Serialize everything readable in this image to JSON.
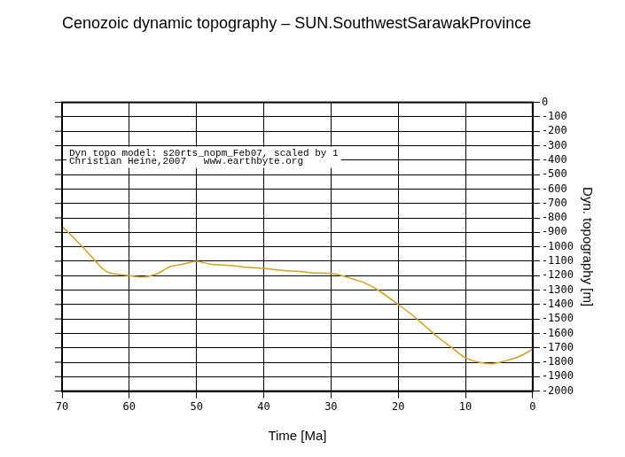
{
  "chart_data": {
    "type": "line",
    "title": "Cenozoic dynamic topography – SUN.SouthwestSarawakProvince",
    "x_label": "Time [Ma]",
    "y_label": "Dyn. topography [m]",
    "annotations": [
      "Dyn topo model: s20rts_nopm_Feb07, scaled by 1",
      "Christian Heine,2007   www.earthbyte.org"
    ],
    "x": [
      70,
      68,
      66,
      64,
      63,
      60,
      58,
      56,
      54,
      52,
      50,
      48,
      45,
      43,
      40,
      37,
      35,
      33,
      30,
      28,
      26,
      25,
      23,
      20,
      18,
      16,
      14,
      12,
      10,
      8,
      6,
      4,
      2,
      0
    ],
    "series": [
      {
        "name": "SUN.SouthwestSarawakProvince",
        "color": "#d4a020",
        "values": [
          -860,
          -950,
          -1050,
          -1150,
          -1180,
          -1200,
          -1210,
          -1190,
          -1140,
          -1120,
          -1100,
          -1120,
          -1130,
          -1140,
          -1150,
          -1165,
          -1170,
          -1180,
          -1185,
          -1205,
          -1235,
          -1250,
          -1300,
          -1400,
          -1470,
          -1550,
          -1630,
          -1700,
          -1770,
          -1800,
          -1810,
          -1790,
          -1760,
          -1710
        ]
      }
    ],
    "xlim": [
      70,
      0
    ],
    "xticks": [
      70,
      60,
      50,
      40,
      30,
      20,
      10,
      0
    ],
    "ylim": [
      -2000,
      0
    ],
    "yticks": [
      0,
      -100,
      -200,
      -300,
      -400,
      -500,
      -600,
      -700,
      -800,
      -900,
      -1000,
      -1100,
      -1200,
      -1300,
      -1400,
      -1500,
      -1600,
      -1700,
      -1800,
      -1900,
      -2000
    ],
    "grid": true
  }
}
